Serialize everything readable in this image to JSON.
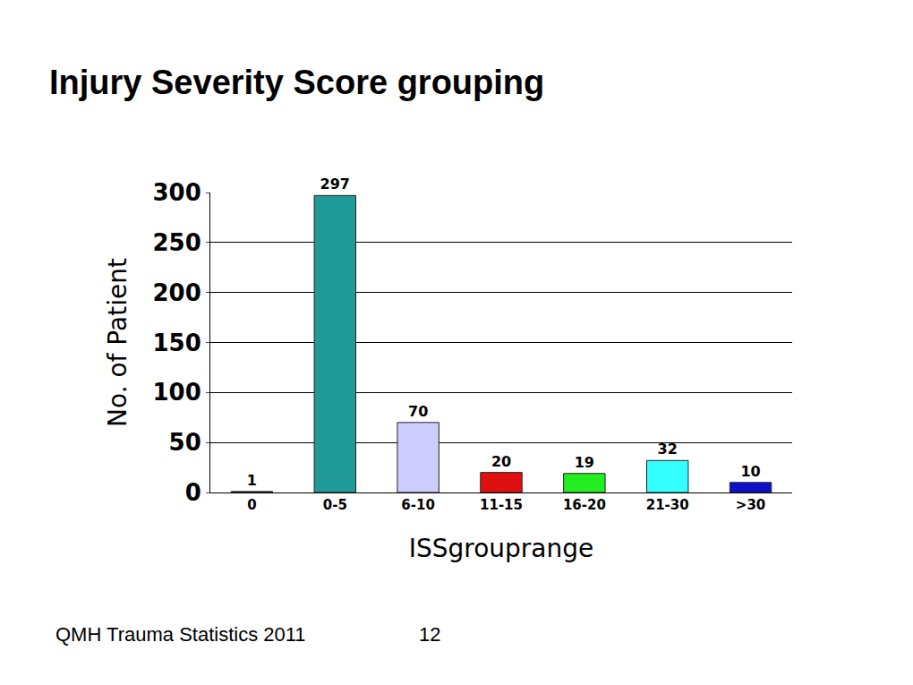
{
  "chart_data": {
    "type": "bar",
    "title": "Injury Severity Score grouping",
    "x_label": "ISSgrouprange",
    "y_label": "No. of Patient",
    "categories": [
      "0",
      "0-5",
      "6-10",
      "11-15",
      "16-20",
      "21-30",
      ">30"
    ],
    "values": [
      1,
      297,
      70,
      20,
      19,
      32,
      10
    ],
    "colors": [
      "#1e1e6e",
      "#1f9a96",
      "#ccccff",
      "#e01010",
      "#22ee22",
      "#33ffff",
      "#1010cc"
    ],
    "ylim": [
      0,
      300
    ],
    "yticks": [
      0,
      50,
      100,
      150,
      200,
      250,
      300
    ],
    "grid": true,
    "data_labels": true
  },
  "footer": {
    "text": "QMH Trauma Statistics 2011",
    "page": 12
  }
}
